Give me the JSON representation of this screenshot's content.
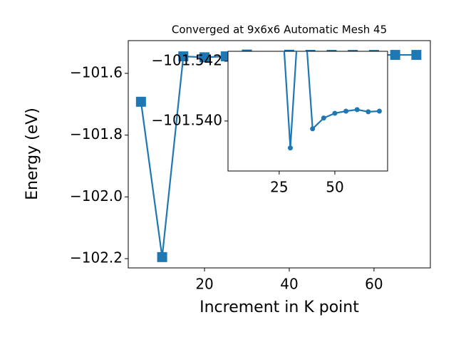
{
  "chart_data": {
    "type": "line",
    "title": "Converged at 9x6x6 Automatic Mesh 45",
    "x_label": "Increment in K point",
    "y_label": "Energy (eV)",
    "x": [
      5,
      10,
      15,
      20,
      25,
      30,
      35,
      40,
      45,
      50,
      55,
      60,
      65,
      70
    ],
    "series": [
      {
        "color": "#1f77b4",
        "values": [
          -101.692,
          -102.195,
          -101.545,
          -101.548,
          -101.545,
          -101.5391,
          -101.545,
          -101.53974,
          -101.5401,
          -101.54026,
          -101.54033,
          -101.54038,
          -101.54031,
          -101.54033
        ]
      }
    ],
    "xlim": [
      2,
      73.3
    ],
    "ylim": [
      -102.23,
      -101.494
    ],
    "xticks": [
      20,
      40,
      60
    ],
    "yticks": [
      {
        "value": -101.6,
        "label": "−101.6"
      },
      {
        "value": -101.8,
        "label": "−101.8"
      },
      {
        "value": -102.0,
        "label": "−102.0"
      },
      {
        "value": -102.2,
        "label": "−102.2"
      }
    ],
    "inset": {
      "xlim": [
        2,
        73.7
      ],
      "ylim": [
        -101.53833,
        -101.54233
      ],
      "xticks": [
        25,
        50
      ],
      "yticks": [
        {
          "value": -101.542,
          "label": "−101.542"
        },
        {
          "value": -101.54,
          "label": "−101.540"
        }
      ]
    }
  }
}
